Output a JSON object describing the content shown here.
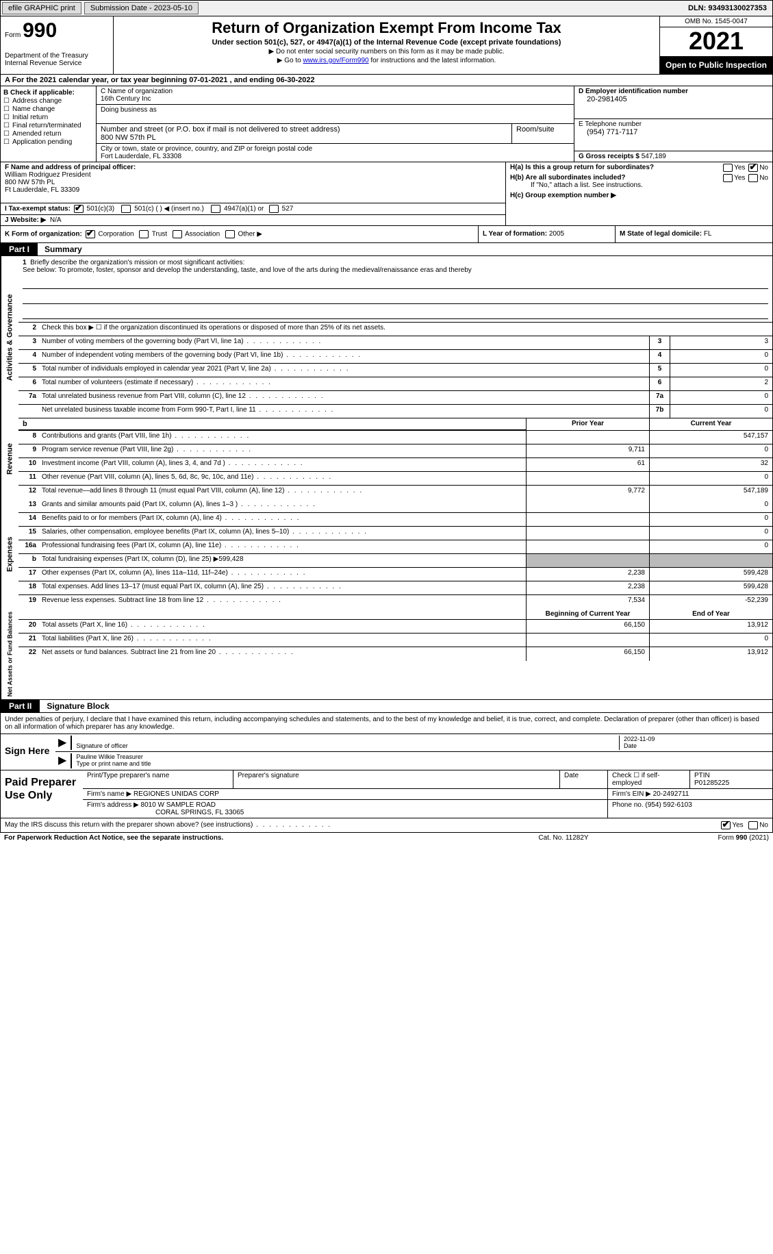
{
  "topbar": {
    "efile": "efile GRAPHIC print",
    "submission": "Submission Date - 2023-05-10",
    "dln": "DLN: 93493130027353"
  },
  "header": {
    "form_label": "Form",
    "form_number": "990",
    "dept": "Department of the Treasury",
    "irs": "Internal Revenue Service",
    "title": "Return of Organization Exempt From Income Tax",
    "subtitle": "Under section 501(c), 527, or 4947(a)(1) of the Internal Revenue Code (except private foundations)",
    "note1": "▶ Do not enter social security numbers on this form as it may be made public.",
    "note2_pre": "▶ Go to ",
    "note2_link": "www.irs.gov/Form990",
    "note2_post": " for instructions and the latest information.",
    "omb": "OMB No. 1545-0047",
    "year": "2021",
    "open": "Open to Public Inspection"
  },
  "row_a": "A For the 2021 calendar year, or tax year beginning 07-01-2021   , and ending 06-30-2022",
  "col_b": {
    "label": "B Check if applicable:",
    "opts": [
      "Address change",
      "Name change",
      "Initial return",
      "Final return/terminated",
      "Amended return",
      "Application pending"
    ]
  },
  "col_c": {
    "c_label": "C Name of organization",
    "org": "16th Century Inc",
    "dba": "Doing business as",
    "addr_label": "Number and street (or P.O. box if mail is not delivered to street address)",
    "room": "Room/suite",
    "addr": "800 NW 57th PL",
    "city_label": "City or town, state or province, country, and ZIP or foreign postal code",
    "city": "Fort Lauderdale, FL  33308"
  },
  "col_d": {
    "d_label": "D Employer identification number",
    "ein": "20-2981405",
    "e_label": "E Telephone number",
    "phone": "(954) 771-7117",
    "g_label": "G Gross receipts $",
    "gross": "547,189"
  },
  "col_f": {
    "f_label": "F Name and address of principal officer:",
    "name": "William Rodriguez President",
    "addr": "800 NW 57th PL",
    "city": "Ft Lauderdale, FL  33309"
  },
  "col_h": {
    "ha": "H(a)  Is this a group return for subordinates?",
    "hb": "H(b)  Are all subordinates included?",
    "hb_note": "If \"No,\" attach a list. See instructions.",
    "hc": "H(c)  Group exemption number ▶",
    "yes": "Yes",
    "no": "No"
  },
  "row_i": {
    "label": "I  Tax-exempt status:",
    "o501c3": "501(c)(3)",
    "o501c": "501(c) (  ) ◀ (insert no.)",
    "o4947": "4947(a)(1) or",
    "o527": "527"
  },
  "row_j": {
    "label": "J  Website: ▶",
    "val": "N/A"
  },
  "row_k": {
    "label": "K Form of organization:",
    "corp": "Corporation",
    "trust": "Trust",
    "assoc": "Association",
    "other": "Other ▶"
  },
  "row_l": {
    "label": "L Year of formation:",
    "val": "2005"
  },
  "row_m": {
    "label": "M State of legal domicile:",
    "val": "FL"
  },
  "part1": {
    "tag": "Part I",
    "title": "Summary"
  },
  "mission": {
    "num": "1",
    "label": "Briefly describe the organization's mission or most significant activities:",
    "text": "See below: To promote, foster, sponsor and develop the understanding, taste, and love of the arts during the medieval/renaissance eras and thereby"
  },
  "line2": {
    "num": "2",
    "text": "Check this box ▶ ☐ if the organization discontinued its operations or disposed of more than 25% of its net assets."
  },
  "vlabels": {
    "gov": "Activities & Governance",
    "rev": "Revenue",
    "exp": "Expenses",
    "net": "Net Assets or Fund Balances"
  },
  "gov_rows": [
    {
      "n": "3",
      "d": "Number of voting members of the governing body (Part VI, line 1a)",
      "b": "3",
      "v": "3"
    },
    {
      "n": "4",
      "d": "Number of independent voting members of the governing body (Part VI, line 1b)",
      "b": "4",
      "v": "0"
    },
    {
      "n": "5",
      "d": "Total number of individuals employed in calendar year 2021 (Part V, line 2a)",
      "b": "5",
      "v": "0"
    },
    {
      "n": "6",
      "d": "Total number of volunteers (estimate if necessary)",
      "b": "6",
      "v": "2"
    },
    {
      "n": "7a",
      "d": "Total unrelated business revenue from Part VIII, column (C), line 12",
      "b": "7a",
      "v": "0"
    },
    {
      "n": "",
      "d": "Net unrelated business taxable income from Form 990-T, Part I, line 11",
      "b": "7b",
      "v": "0"
    }
  ],
  "col_headers": {
    "prior": "Prior Year",
    "current": "Current Year"
  },
  "rev_rows": [
    {
      "n": "8",
      "d": "Contributions and grants (Part VIII, line 1h)",
      "p": "",
      "c": "547,157"
    },
    {
      "n": "9",
      "d": "Program service revenue (Part VIII, line 2g)",
      "p": "9,711",
      "c": "0"
    },
    {
      "n": "10",
      "d": "Investment income (Part VIII, column (A), lines 3, 4, and 7d )",
      "p": "61",
      "c": "32"
    },
    {
      "n": "11",
      "d": "Other revenue (Part VIII, column (A), lines 5, 6d, 8c, 9c, 10c, and 11e)",
      "p": "",
      "c": "0"
    },
    {
      "n": "12",
      "d": "Total revenue—add lines 8 through 11 (must equal Part VIII, column (A), line 12)",
      "p": "9,772",
      "c": "547,189"
    }
  ],
  "exp_rows": [
    {
      "n": "13",
      "d": "Grants and similar amounts paid (Part IX, column (A), lines 1–3 )",
      "p": "",
      "c": "0"
    },
    {
      "n": "14",
      "d": "Benefits paid to or for members (Part IX, column (A), line 4)",
      "p": "",
      "c": "0"
    },
    {
      "n": "15",
      "d": "Salaries, other compensation, employee benefits (Part IX, column (A), lines 5–10)",
      "p": "",
      "c": "0"
    },
    {
      "n": "16a",
      "d": "Professional fundraising fees (Part IX, column (A), line 11e)",
      "p": "",
      "c": "0"
    }
  ],
  "line16b": {
    "n": "b",
    "d": "Total fundraising expenses (Part IX, column (D), line 25) ▶",
    "v": "599,428"
  },
  "exp_rows2": [
    {
      "n": "17",
      "d": "Other expenses (Part IX, column (A), lines 11a–11d, 11f–24e)",
      "p": "2,238",
      "c": "599,428"
    },
    {
      "n": "18",
      "d": "Total expenses. Add lines 13–17 (must equal Part IX, column (A), line 25)",
      "p": "2,238",
      "c": "599,428"
    },
    {
      "n": "19",
      "d": "Revenue less expenses. Subtract line 18 from line 12",
      "p": "7,534",
      "c": "-52,239"
    }
  ],
  "net_headers": {
    "begin": "Beginning of Current Year",
    "end": "End of Year"
  },
  "net_rows": [
    {
      "n": "20",
      "d": "Total assets (Part X, line 16)",
      "p": "66,150",
      "c": "13,912"
    },
    {
      "n": "21",
      "d": "Total liabilities (Part X, line 26)",
      "p": "",
      "c": "0"
    },
    {
      "n": "22",
      "d": "Net assets or fund balances. Subtract line 21 from line 20",
      "p": "66,150",
      "c": "13,912"
    }
  ],
  "part2": {
    "tag": "Part II",
    "title": "Signature Block"
  },
  "sig_intro": "Under penalties of perjury, I declare that I have examined this return, including accompanying schedules and statements, and to the best of my knowledge and belief, it is true, correct, and complete. Declaration of preparer (other than officer) is based on all information of which preparer has any knowledge.",
  "sign": {
    "label": "Sign Here",
    "sig_of": "Signature of officer",
    "date": "Date",
    "date_val": "2022-11-09",
    "name": "Pauline Wilkie  Treasurer",
    "type": "Type or print name and title"
  },
  "prep": {
    "label": "Paid Preparer Use Only",
    "print": "Print/Type preparer's name",
    "psig": "Preparer's signature",
    "pdate": "Date",
    "check": "Check ☐ if self-employed",
    "ptin_l": "PTIN",
    "ptin": "P01285225",
    "firm_l": "Firm's name    ▶",
    "firm": "REGIONES UNIDAS CORP",
    "ein_l": "Firm's EIN ▶",
    "ein": "20-2492711",
    "addr_l": "Firm's address ▶",
    "addr1": "8010 W SAMPLE ROAD",
    "addr2": "CORAL SPRINGS, FL  33065",
    "phone_l": "Phone no.",
    "phone": "(954) 592-6103"
  },
  "footer_q": "May the IRS discuss this return with the preparer shown above? (see instructions)",
  "footer": {
    "l": "For Paperwork Reduction Act Notice, see the separate instructions.",
    "c": "Cat. No. 11282Y",
    "r": "Form 990 (2021)"
  }
}
